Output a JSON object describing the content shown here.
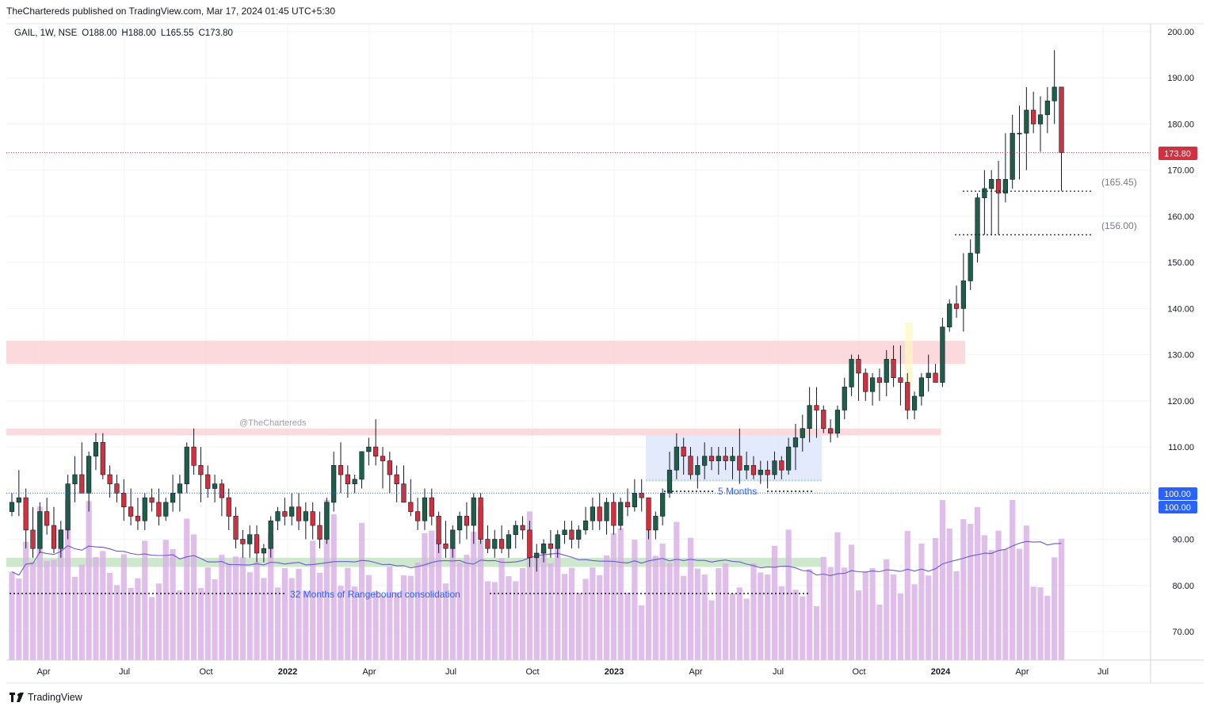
{
  "banner": "TheChartereds published on TradingView.com, Mar 17, 2024 01:45 UTC+5:30",
  "footer": {
    "brand": "TradingView",
    "logo_icon": "tradingview-logo-icon"
  },
  "colors": {
    "up": "#1e5f4a",
    "down": "#d1303f",
    "volume": "#d9b3e6",
    "ma": "#6a5acd",
    "last_price": "#d1303f",
    "level_100": "#2962ff",
    "resistance_zone": "#fbd5d8",
    "support_zone": "#c9e6c9",
    "range_box": "#dde6fb"
  },
  "chart_data": {
    "type": "candlestick",
    "symbol": "GAIL",
    "interval": "1W",
    "exchange": "NSE",
    "ohlc_legend": {
      "open": "O188.00",
      "high": "H188.00",
      "low": "L165.55",
      "close": "C173.80"
    },
    "y_axis": {
      "min": 63,
      "max": 202,
      "ticks": [
        "70.00",
        "80.00",
        "90.00",
        "110.00",
        "120.00",
        "130.00",
        "140.00",
        "150.00",
        "160.00",
        "170.00",
        "180.00",
        "190.00",
        "200.00"
      ]
    },
    "x_axis": {
      "labels": [
        "Apr",
        "Jul",
        "Oct",
        "2022",
        "Apr",
        "Jul",
        "Oct",
        "2023",
        "Apr",
        "Jul",
        "Oct",
        "2024",
        "Apr",
        "Jul"
      ],
      "bold": [
        "2022",
        "2023",
        "2024"
      ]
    },
    "last_price_label": "173.80",
    "last_price": 173.8,
    "level_labels": [
      "100.00",
      "100.00"
    ],
    "level_value": 100,
    "zones": [
      {
        "name": "upper-resistance-zone",
        "low": 128,
        "high": 133
      },
      {
        "name": "lower-resistance-zone",
        "low": 112.5,
        "high": 114
      },
      {
        "name": "support-zone",
        "low": 84,
        "high": 86
      }
    ],
    "annotations": {
      "watermark": "@TheChartereds",
      "months5": "5 Months",
      "months32": "32 Months of Rangebound consolidation",
      "level_165": "(165.45)",
      "level_156": "(156.00)"
    },
    "levels": {
      "l165": 165.45,
      "l156": 156.0
    },
    "candles": [
      [
        96,
        100,
        95,
        98
      ],
      [
        98,
        105,
        95,
        99
      ],
      [
        99,
        101,
        88,
        92
      ],
      [
        92,
        97,
        86,
        88
      ],
      [
        88,
        98,
        87,
        96
      ],
      [
        96,
        99,
        91,
        93
      ],
      [
        93,
        97,
        87,
        88
      ],
      [
        88,
        94,
        86,
        92
      ],
      [
        92,
        104,
        90,
        102
      ],
      [
        102,
        108,
        98,
        104
      ],
      [
        104,
        111,
        101,
        100
      ],
      [
        100,
        109,
        96,
        108
      ],
      [
        108,
        113,
        105,
        111
      ],
      [
        111,
        113,
        103,
        104
      ],
      [
        104,
        106,
        99,
        102
      ],
      [
        102,
        104,
        98,
        100
      ],
      [
        100,
        103,
        94,
        97
      ],
      [
        97,
        101,
        93,
        95
      ],
      [
        95,
        99,
        92,
        94
      ],
      [
        94,
        100,
        92,
        99
      ],
      [
        99,
        101,
        96,
        98
      ],
      [
        98,
        101,
        93,
        95
      ],
      [
        95,
        99,
        94,
        98
      ],
      [
        98,
        104,
        96,
        100
      ],
      [
        100,
        104,
        96,
        102
      ],
      [
        102,
        111,
        100,
        110
      ],
      [
        110,
        114,
        104,
        106
      ],
      [
        106,
        110,
        98,
        104
      ],
      [
        104,
        106,
        99,
        101
      ],
      [
        101,
        104,
        98,
        102
      ],
      [
        102,
        103,
        95,
        99
      ],
      [
        99,
        101,
        92,
        95
      ],
      [
        95,
        97,
        88,
        90
      ],
      [
        90,
        92,
        86,
        89
      ],
      [
        89,
        93,
        86,
        91
      ],
      [
        91,
        93,
        85,
        87
      ],
      [
        87,
        89,
        85,
        88
      ],
      [
        88,
        95,
        86,
        94
      ],
      [
        94,
        97,
        92,
        96
      ],
      [
        96,
        99,
        93,
        95
      ],
      [
        95,
        100,
        93,
        97
      ],
      [
        97,
        100,
        92,
        94
      ],
      [
        94,
        98,
        90,
        96
      ],
      [
        96,
        98,
        90,
        93
      ],
      [
        93,
        96,
        88,
        90
      ],
      [
        90,
        99,
        89,
        98
      ],
      [
        98,
        109,
        96,
        106
      ],
      [
        106,
        111,
        100,
        104
      ],
      [
        104,
        106,
        99,
        102
      ],
      [
        102,
        104,
        100,
        103
      ],
      [
        103,
        109,
        101,
        109
      ],
      [
        109,
        112,
        106,
        110
      ],
      [
        110,
        116,
        106,
        108
      ],
      [
        108,
        110,
        101,
        107
      ],
      [
        107,
        109,
        100,
        104
      ],
      [
        104,
        106,
        98,
        102
      ],
      [
        102,
        106,
        99,
        98
      ],
      [
        98,
        103,
        95,
        96
      ],
      [
        96,
        99,
        92,
        94
      ],
      [
        94,
        101,
        92,
        99
      ],
      [
        99,
        101,
        93,
        95
      ],
      [
        95,
        96,
        87,
        89
      ],
      [
        89,
        94,
        86,
        88
      ],
      [
        88,
        93,
        86,
        92
      ],
      [
        92,
        96,
        89,
        95
      ],
      [
        95,
        98,
        90,
        93
      ],
      [
        93,
        100,
        89,
        99
      ],
      [
        99,
        100,
        89,
        90
      ],
      [
        90,
        93,
        87,
        88
      ],
      [
        88,
        92,
        86,
        90
      ],
      [
        90,
        93,
        87,
        88
      ],
      [
        88,
        92,
        86,
        91
      ],
      [
        91,
        94,
        88,
        93
      ],
      [
        93,
        95,
        90,
        92
      ],
      [
        92,
        94,
        84,
        86
      ],
      [
        86,
        89,
        83,
        87
      ],
      [
        87,
        90,
        85,
        89
      ],
      [
        89,
        92,
        86,
        88
      ],
      [
        88,
        92,
        86,
        91
      ],
      [
        91,
        94,
        89,
        92
      ],
      [
        92,
        94,
        88,
        90
      ],
      [
        90,
        93,
        88,
        92
      ],
      [
        92,
        97,
        91,
        94
      ],
      [
        94,
        99,
        92,
        97
      ],
      [
        97,
        100,
        92,
        94
      ],
      [
        94,
        99,
        91,
        98
      ],
      [
        98,
        100,
        91,
        93
      ],
      [
        93,
        99,
        92,
        98
      ],
      [
        98,
        101,
        95,
        97
      ],
      [
        97,
        103,
        96,
        100
      ],
      [
        100,
        103,
        96,
        99
      ],
      [
        99,
        98,
        90,
        92
      ],
      [
        92,
        96,
        90,
        95
      ],
      [
        95,
        101,
        93,
        100
      ],
      [
        100,
        109,
        99,
        105
      ],
      [
        105,
        113,
        103,
        110
      ],
      [
        110,
        112,
        104,
        108
      ],
      [
        108,
        110,
        103,
        104
      ],
      [
        104,
        108,
        101,
        106
      ],
      [
        106,
        111,
        103,
        108
      ],
      [
        108,
        110,
        105,
        107
      ],
      [
        107,
        110,
        104,
        108
      ],
      [
        108,
        110,
        105,
        107
      ],
      [
        107,
        110,
        103,
        108
      ],
      [
        108,
        114,
        102,
        105
      ],
      [
        105,
        109,
        103,
        106
      ],
      [
        106,
        108,
        103,
        104
      ],
      [
        104,
        107,
        102,
        105
      ],
      [
        105,
        107,
        101,
        104
      ],
      [
        104,
        109,
        103,
        107
      ],
      [
        107,
        108,
        103,
        105
      ],
      [
        105,
        112,
        104,
        110
      ],
      [
        110,
        115,
        105,
        112
      ],
      [
        112,
        117,
        109,
        114
      ],
      [
        114,
        123,
        111,
        119
      ],
      [
        119,
        123,
        112,
        118
      ],
      [
        118,
        119,
        113,
        114
      ],
      [
        114,
        116,
        111,
        113
      ],
      [
        113,
        119,
        112,
        118
      ],
      [
        118,
        125,
        116,
        123
      ],
      [
        123,
        130,
        121,
        129
      ],
      [
        129,
        130,
        120,
        126
      ],
      [
        126,
        127,
        120,
        122
      ],
      [
        122,
        126,
        119,
        125
      ],
      [
        125,
        127,
        120,
        124
      ],
      [
        124,
        131,
        121,
        129
      ],
      [
        129,
        132,
        123,
        125
      ],
      [
        125,
        132,
        119,
        124
      ],
      [
        124,
        126,
        116,
        118
      ],
      [
        118,
        122,
        116,
        121
      ],
      [
        121,
        126,
        119,
        125
      ],
      [
        125,
        130,
        122,
        126
      ],
      [
        126,
        128,
        124,
        124
      ],
      [
        124,
        138,
        123,
        136
      ],
      [
        136,
        142,
        135,
        141
      ],
      [
        141,
        145,
        138,
        140
      ],
      [
        140,
        152,
        135,
        146
      ],
      [
        146,
        155,
        144,
        152
      ],
      [
        152,
        165,
        150,
        164
      ],
      [
        164,
        170,
        156,
        166
      ],
      [
        166,
        170,
        156,
        168
      ],
      [
        168,
        172,
        156,
        165
      ],
      [
        165,
        178,
        163,
        168
      ],
      [
        168,
        182,
        166,
        178
      ],
      [
        178,
        184,
        168,
        178
      ],
      [
        178,
        188,
        170,
        183
      ],
      [
        183,
        187,
        178,
        180
      ],
      [
        180,
        186,
        174,
        182
      ],
      [
        182,
        188,
        178,
        185
      ],
      [
        185,
        196,
        180,
        188
      ],
      [
        188,
        188,
        165.55,
        173.8
      ]
    ],
    "volume_scale_max": 100
  }
}
